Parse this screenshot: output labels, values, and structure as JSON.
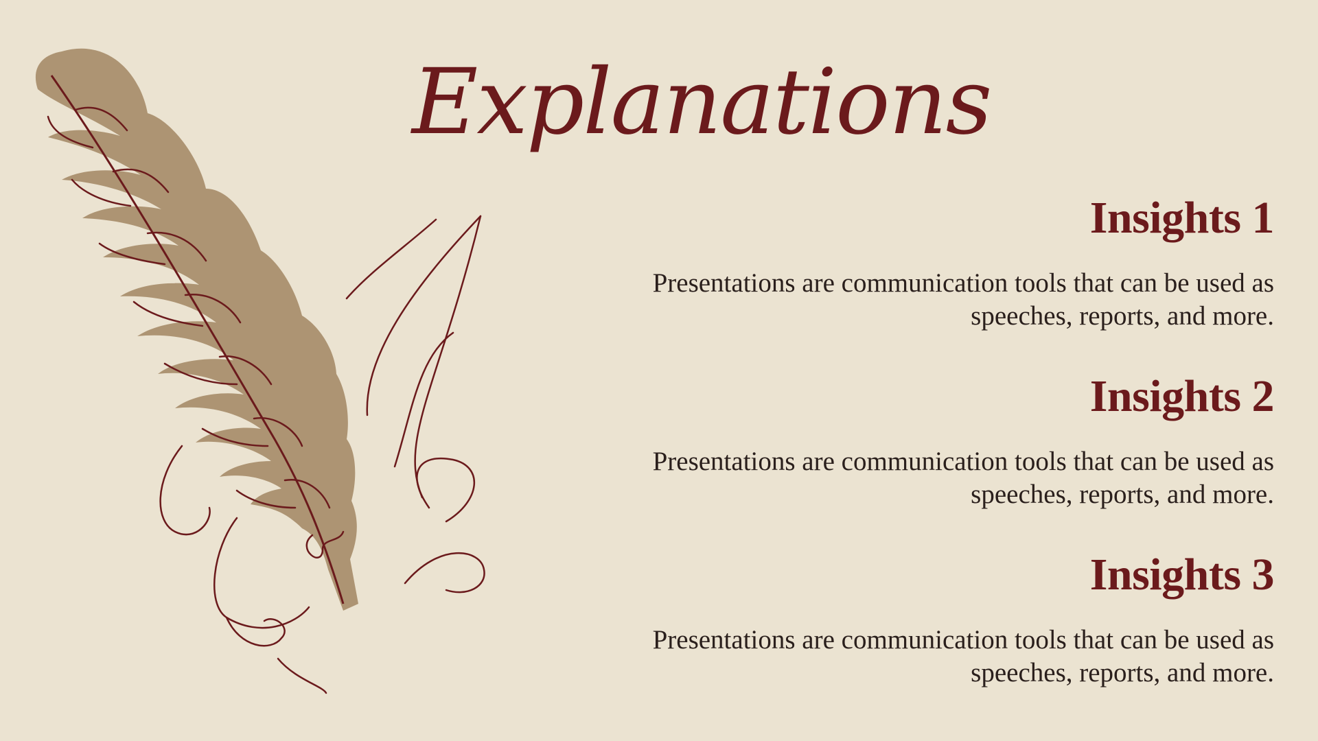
{
  "slide": {
    "title": "Explanations",
    "background_color": "#EBE3D1",
    "accent_color": "#6B1A1C",
    "text_color": "#2A1F1C",
    "feather_color": "#AD9473"
  },
  "insights": [
    {
      "heading": "Insights 1",
      "body_line_1": "Presentations are communication tools that can be used as",
      "body_line_2": "speeches, reports, and more."
    },
    {
      "heading": "Insights 2",
      "body_line_1": "Presentations are communication tools that can be used as",
      "body_line_2": "speeches, reports, and more."
    },
    {
      "heading": "Insights 3",
      "body_line_1": "Presentations are communication tools that can be used as",
      "body_line_2": "speeches, reports, and more."
    }
  ],
  "decorations": {
    "feather_icon": "feather-quill-icon",
    "smoke_icon": "swirl-lines-icon"
  }
}
